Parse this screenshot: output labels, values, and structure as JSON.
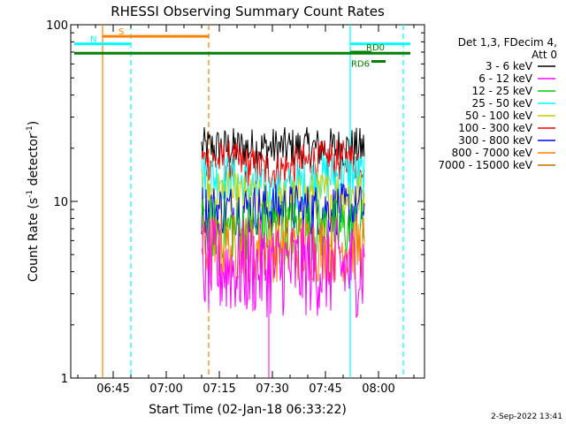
{
  "chart_data": {
    "type": "line",
    "title": "RHESSI Observing Summary Count Rates",
    "xlabel": "Start Time (02-Jan-18 06:33:22)",
    "ylabel_main": "Count Rate (s",
    "ylabel_sup1": "-1",
    "ylabel_mid": " detector",
    "ylabel_sup2": "-1",
    "ylabel_end": ")",
    "yscale": "log",
    "ylim": [
      1,
      100
    ],
    "x_tick_labels": [
      "06:45",
      "07:00",
      "07:15",
      "07:30",
      "07:45",
      "08:00"
    ],
    "y_tick_labels": [
      "1",
      "10",
      "100"
    ],
    "legend": {
      "header1": "Det 1,3, FDecim 4,",
      "header2": "Att 0",
      "entries": [
        {
          "label": "3 - 6 keV",
          "color": "#000000"
        },
        {
          "label": "6 - 12 keV",
          "color": "#ff00ff"
        },
        {
          "label": "12 - 25 keV",
          "color": "#00cc00"
        },
        {
          "label": "25 - 50 keV",
          "color": "#00ffff"
        },
        {
          "label": "50 - 100 keV",
          "color": "#cccc00"
        },
        {
          "label": "100 - 300 keV",
          "color": "#ff0000"
        },
        {
          "label": "300 - 800 keV",
          "color": "#0000ff"
        },
        {
          "label": "800 - 7000 keV",
          "color": "#ff8000"
        },
        {
          "label": "7000 - 15000 keV",
          "color": "#c07000"
        }
      ]
    },
    "series": [
      {
        "name": "3 - 6 keV",
        "color": "#000000",
        "x": [
          "07:10",
          "07:56"
        ],
        "base": 20,
        "jitter": 0.12
      },
      {
        "name": "100 - 300 keV",
        "color": "#ff0000",
        "x": [
          "07:10",
          "07:56"
        ],
        "base": 17,
        "jitter": 0.12,
        "dip_center": "07:30",
        "dip_min": 15
      },
      {
        "name": "25 - 50 keV",
        "color": "#00ffff",
        "x": [
          "07:10",
          "07:56"
        ],
        "base": 14,
        "jitter": 0.14,
        "dip_center": "07:30",
        "dip_min": 11
      },
      {
        "name": "50 - 100 keV",
        "color": "#cccc00",
        "x": [
          "07:10",
          "07:56"
        ],
        "base": 11,
        "jitter": 0.14,
        "dip_center": "07:30",
        "dip_min": 9.5
      },
      {
        "name": "300 - 800 keV",
        "color": "#0000ff",
        "x": [
          "07:10",
          "07:56"
        ],
        "base": 9,
        "jitter": 0.15
      },
      {
        "name": "12 - 25 keV",
        "color": "#00cc00",
        "x": [
          "07:10",
          "07:56"
        ],
        "base": 7,
        "jitter": 0.18
      },
      {
        "name": "800 - 7000 keV",
        "color": "#ff8000",
        "x": [
          "07:10",
          "07:56"
        ],
        "base": 5.5,
        "jitter": 0.2
      },
      {
        "name": "6 - 12 keV",
        "color": "#ff00ff",
        "x": [
          "07:10",
          "07:56"
        ],
        "base": 4.2,
        "jitter": 0.28
      }
    ],
    "flags": [
      {
        "label": "S",
        "color": "#ff8000",
        "start": "06:42",
        "end": "07:12",
        "level": 86
      },
      {
        "label": "N",
        "color": "#00ffff",
        "start": "06:34",
        "end": "06:50",
        "level": 78
      },
      {
        "label": "",
        "color": "#00ffff",
        "start": "07:52",
        "end": "08:09",
        "level": 78
      },
      {
        "label": "",
        "color": "#008000",
        "start": "06:34",
        "end": "08:09",
        "level": 69
      },
      {
        "label": "RD0",
        "color": "#008000",
        "start": "07:52",
        "end": "07:58",
        "level": 70
      },
      {
        "label": "RD6",
        "color": "#008000",
        "start": "07:58",
        "end": "08:02",
        "level": 62
      }
    ],
    "vlines": [
      {
        "time": "06:42",
        "color": "#ff8000",
        "style": "solid"
      },
      {
        "time": "06:50",
        "color": "#00ffff",
        "style": "dashed"
      },
      {
        "time": "07:12",
        "color": "#ff8000",
        "style": "dashed"
      },
      {
        "time": "07:52",
        "color": "#00ffff",
        "style": "solid"
      },
      {
        "time": "08:07",
        "color": "#00ffff",
        "style": "dashed"
      }
    ],
    "magenta_spike": {
      "time": "07:29",
      "low": 1,
      "high": 3
    },
    "xrange": [
      "06:33",
      "08:13"
    ]
  },
  "footer": {
    "date": "2-Sep-2022 13:41"
  }
}
